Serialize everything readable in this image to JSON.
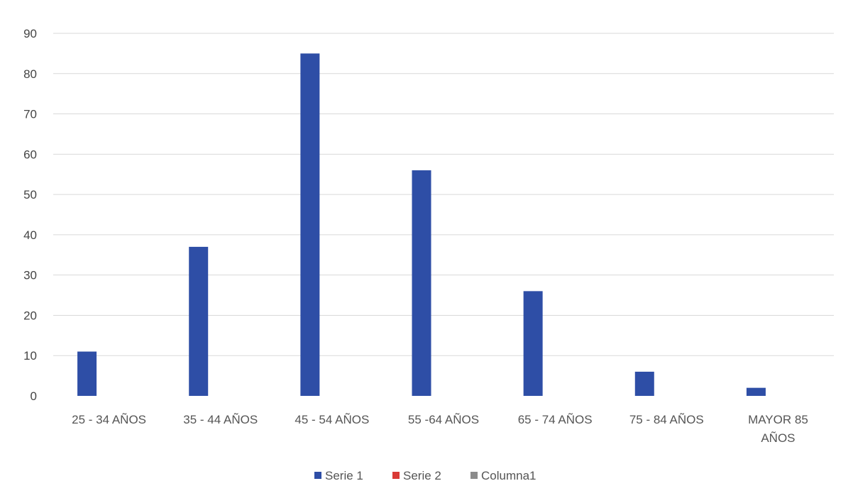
{
  "chart_data": {
    "type": "bar",
    "title": "",
    "xlabel": "",
    "ylabel": "",
    "ylim": [
      0,
      90
    ],
    "yticks": [
      0,
      10,
      20,
      30,
      40,
      50,
      60,
      70,
      80,
      90
    ],
    "grid": true,
    "legend_position": "bottom",
    "categories": [
      [
        "25 - 34 AÑOS"
      ],
      [
        "35 - 44 AÑOS"
      ],
      [
        "45 - 54 AÑOS"
      ],
      [
        "55 -64 AÑOS"
      ],
      [
        "65 - 74 AÑOS"
      ],
      [
        "75 - 84 AÑOS"
      ],
      [
        "MAYOR 85",
        "AÑOS"
      ]
    ],
    "series": [
      {
        "name": "Serie 1",
        "color": "#2e4ea6",
        "values": [
          11,
          37,
          85,
          56,
          26,
          6,
          2
        ]
      },
      {
        "name": "Serie 2",
        "color": "#d93a36",
        "values": [
          0,
          0,
          0,
          0,
          0,
          0,
          0
        ]
      },
      {
        "name": "Columna1",
        "color": "#8c8c8c",
        "values": [
          0,
          0,
          0,
          0,
          0,
          0,
          0
        ]
      }
    ]
  }
}
